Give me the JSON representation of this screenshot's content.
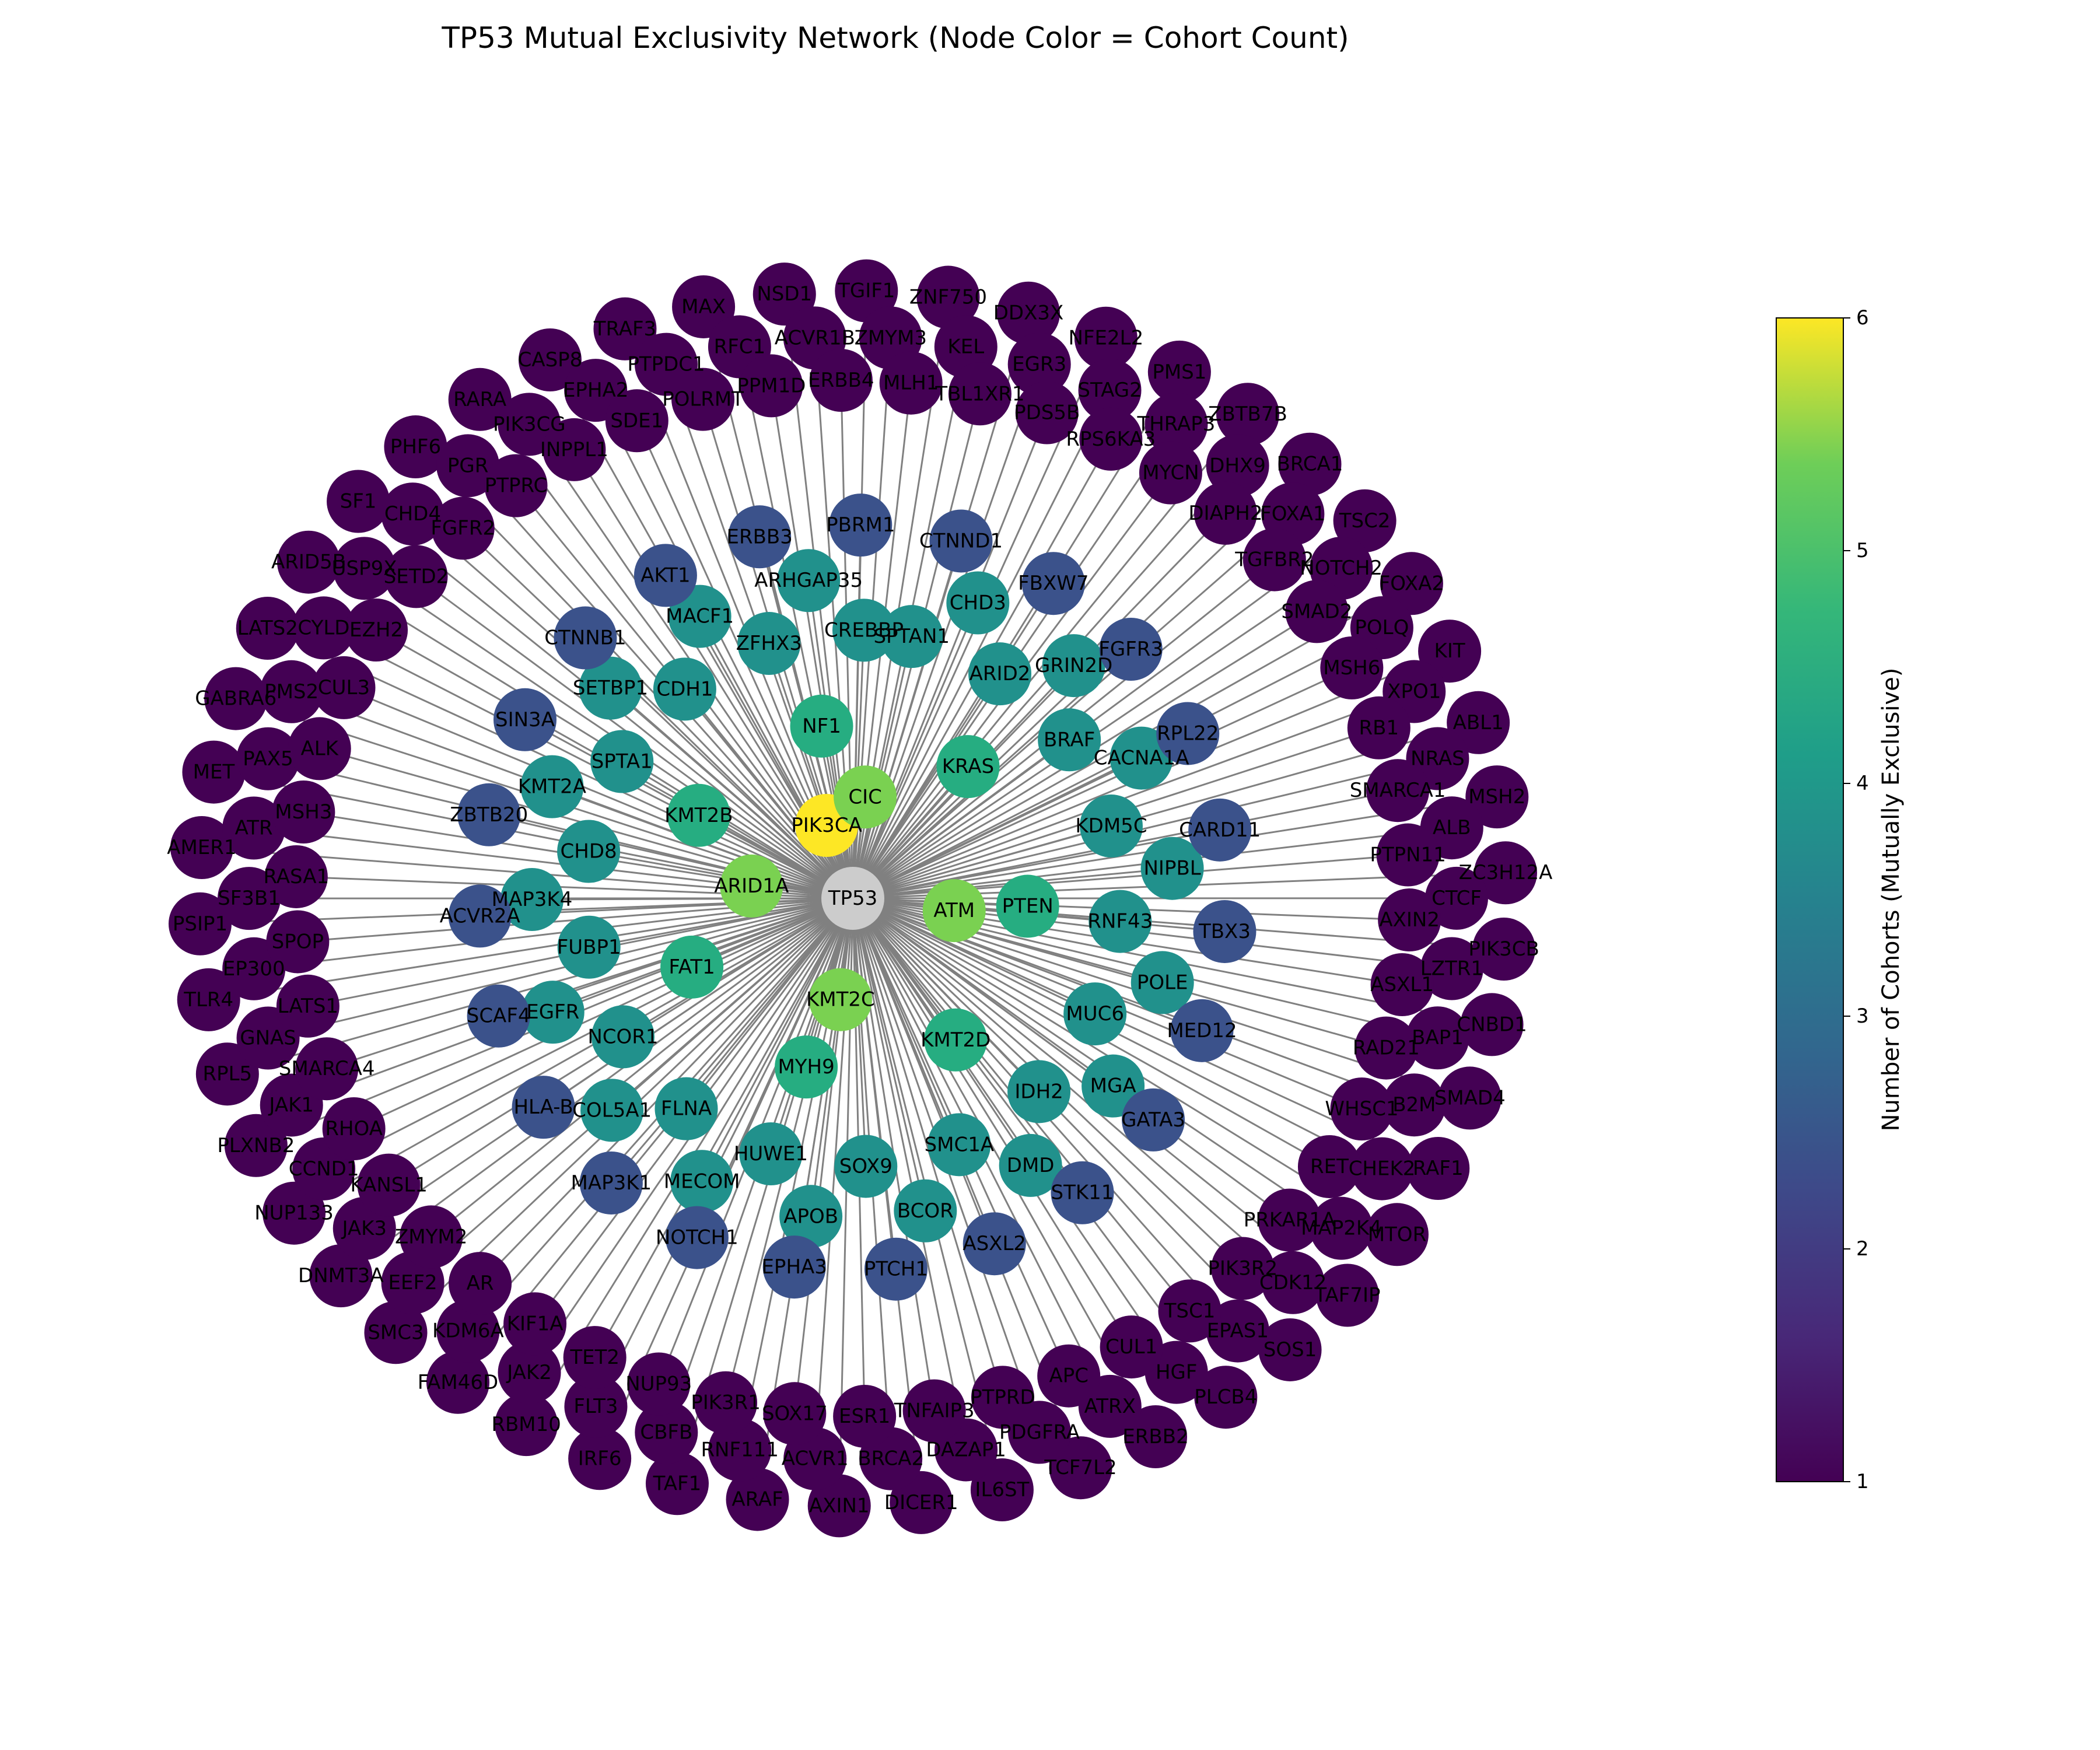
{
  "title": "TP53 Mutual Exclusivity Network (Node Color = Cohort Count)",
  "hub": {
    "label": "TP53",
    "color": "#cccccc"
  },
  "edge_color": "#808080",
  "colorbar": {
    "label": "Number of Cohorts (Mutually Exclusive)",
    "min": 1,
    "max": 6,
    "ticks": [
      "1",
      "2",
      "3",
      "4",
      "5",
      "6"
    ],
    "colormap": "viridis"
  },
  "cohort_colors": {
    "1": "#440154",
    "2": "#3b528b",
    "3": "#21918c",
    "4": "#26ad81",
    "5": "#7ad151",
    "6": "#fde725"
  },
  "rings": [
    {
      "cohorts": 6,
      "genes": [
        "PIK3CA"
      ]
    },
    {
      "cohorts": 5,
      "genes": [
        "CIC",
        "ATM",
        "KMT2C",
        "ARID1A"
      ]
    },
    {
      "cohorts": 4,
      "genes": [
        "NF1",
        "KRAS",
        "PTEN",
        "KMT2D",
        "MYH9",
        "FAT1",
        "KMT2B"
      ]
    },
    {
      "cohorts": 3,
      "genes": [
        "SPTAN1",
        "CHD3",
        "ARID2",
        "GRIN2D",
        "BRAF",
        "CACNA1A",
        "KDM5C",
        "NIPBL",
        "RNF43",
        "POLE",
        "MUC6",
        "MGA",
        "IDH2",
        "DMD",
        "SMC1A",
        "BCOR",
        "SOX9",
        "APOB",
        "HUWE1",
        "MECOM",
        "FLNA",
        "COL5A1",
        "NCOR1",
        "EGFR",
        "FUBP1",
        "MAP3K4",
        "CHD8",
        "KMT2A",
        "SPTA1",
        "SETBP1",
        "CDH1",
        "MACF1",
        "ZFHX3",
        "ARHGAP35",
        "CREBBP"
      ]
    },
    {
      "cohorts": 2,
      "genes": [
        "PBRM1",
        "CTNND1",
        "FBXW7",
        "FGFR3",
        "RPL22",
        "CARD11",
        "TBX3",
        "MED12",
        "GATA3",
        "STK11",
        "ASXL2",
        "PTCH1",
        "EPHA3",
        "NOTCH1",
        "MAP3K1",
        "HLA-B",
        "SCAF4",
        "ACVR2A",
        "ZBTB20",
        "SIN3A",
        "CTNNB1",
        "AKT1",
        "ERBB3"
      ]
    },
    {
      "cohorts": 1,
      "genes": [
        "TGIF1",
        "ZMYM3",
        "MLH1",
        "ZNF750",
        "KEL",
        "TBL1XR1",
        "DDX3X",
        "EGR3",
        "PDS5B",
        "NFE2L2",
        "STAG2",
        "RPS6KA3",
        "PMS1",
        "THRAP3",
        "MYCN",
        "ZBTB7B",
        "DHX9",
        "DIAPH2",
        "BRCA1",
        "FOXA1",
        "TGFBR2",
        "TSC2",
        "NOTCH2",
        "SMAD2",
        "FOXA2",
        "POLQ",
        "MSH6",
        "KIT",
        "XPO1",
        "RB1",
        "ABL1",
        "NRAS",
        "SMARCA1",
        "MSH2",
        "ALB",
        "PTPN11",
        "ZC3H12A",
        "CTCF",
        "AXIN2",
        "PIK3CB",
        "LZTR1",
        "ASXL1",
        "CNBD1",
        "BAP1",
        "RAD21",
        "SMAD4",
        "B2M",
        "WHSC1",
        "RAF1",
        "CHEK2",
        "RET",
        "MTOR",
        "MAP2K4",
        "PRKAR1A",
        "TAF7IP",
        "CDK12",
        "PIK3R2",
        "SOS1",
        "EPAS1",
        "TSC1",
        "PLCB4",
        "HGF",
        "CUL1",
        "ERBB2",
        "ATRX",
        "APC",
        "TCF7L2",
        "PDGFRA",
        "PTPRD",
        "IL6ST",
        "DAZAP1",
        "TNFAIP3",
        "DICER1",
        "BRCA2",
        "ESR1",
        "AXIN1",
        "ACVR1",
        "SOX17",
        "ARAF",
        "RNF111",
        "PIK3R1",
        "TAF1",
        "CBFB",
        "NUP93",
        "IRF6",
        "FLT3",
        "TET2",
        "RBM10",
        "JAK2",
        "KIF1A",
        "FAM46D",
        "KDM6A",
        "AR",
        "SMC3",
        "EEF2",
        "ZMYM2",
        "DNMT3A",
        "JAK3",
        "KANSL1",
        "NUP133",
        "CCND1",
        "RHOA",
        "PLXNB2",
        "JAK1",
        "SMARCA4",
        "RPL5",
        "GNAS",
        "LATS1",
        "TLR4",
        "EP300",
        "SPOP",
        "PSIP1",
        "SF3B1",
        "RASA1",
        "AMER1",
        "ATR",
        "MSH3",
        "MET",
        "PAX5",
        "ALK",
        "GABRA6",
        "PMS2",
        "CUL3",
        "LATS2",
        "CYLD",
        "EZH2",
        "ARID5B",
        "USP9X",
        "SETD2",
        "SF1",
        "CHD4",
        "FGFR2",
        "PHF6",
        "PGR",
        "PTPRC",
        "RARA",
        "PIK3CG",
        "INPPL1",
        "CASP8",
        "EPHA2",
        "SDE1",
        "TRAF3",
        "PTPDC1",
        "POLRMT",
        "MAX",
        "RFC1",
        "PPM1D",
        "NSD1",
        "ACVR1B",
        "ERBB4"
      ]
    }
  ]
}
